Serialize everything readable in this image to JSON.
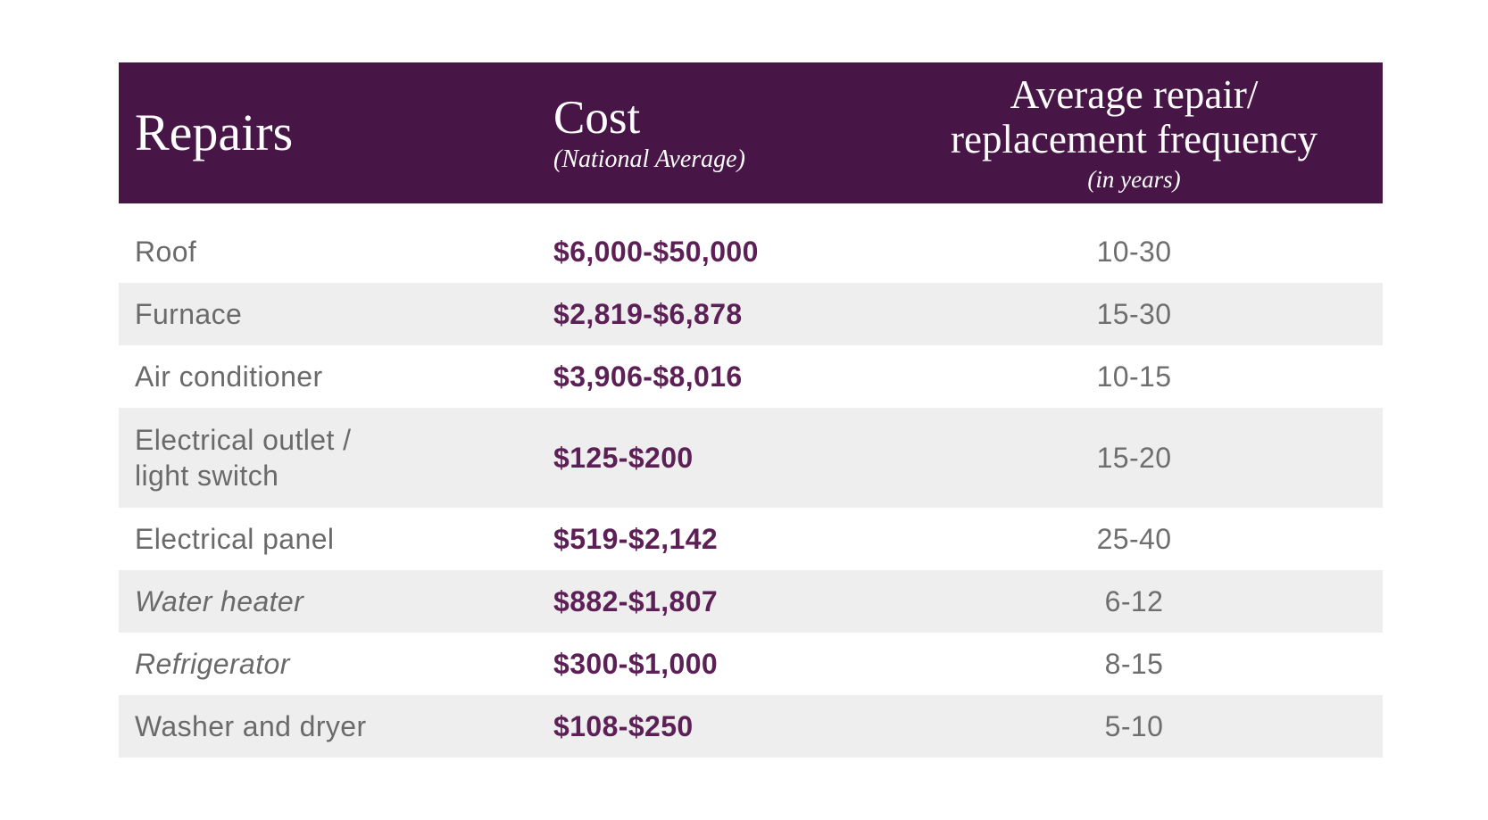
{
  "colors": {
    "header_background": "#481547",
    "header_text": "#ffffff",
    "cost_text": "#5c1f56",
    "repair_label_text": "#6a6a6a",
    "frequency_text": "#6e6e6e",
    "shaded_row_background": "#eeeeee",
    "page_background": "#ffffff"
  },
  "header": {
    "repairs_label": "Repairs",
    "cost_label": "Cost",
    "cost_sublabel": "(National Average)",
    "frequency_line1": "Average repair/",
    "frequency_line2": "replacement frequency",
    "frequency_sublabel": "(in years)"
  },
  "rows": [
    {
      "repair_lines": [
        "Roof"
      ],
      "italic": false,
      "shaded": false,
      "cost": "$6,000-$50,000",
      "frequency": "10-30"
    },
    {
      "repair_lines": [
        "Furnace"
      ],
      "italic": false,
      "shaded": true,
      "cost": "$2,819-$6,878",
      "frequency": "15-30"
    },
    {
      "repair_lines": [
        "Air conditioner"
      ],
      "italic": false,
      "shaded": false,
      "cost": "$3,906-$8,016",
      "frequency": "10-15"
    },
    {
      "repair_lines": [
        "Electrical outlet /",
        "light switch"
      ],
      "italic": false,
      "shaded": true,
      "cost": "$125-$200",
      "frequency": "15-20"
    },
    {
      "repair_lines": [
        "Electrical panel"
      ],
      "italic": false,
      "shaded": false,
      "cost": "$519-$2,142",
      "frequency": "25-40"
    },
    {
      "repair_lines": [
        "Water heater"
      ],
      "italic": true,
      "shaded": true,
      "cost": "$882-$1,807",
      "frequency": "6-12"
    },
    {
      "repair_lines": [
        "Refrigerator"
      ],
      "italic": true,
      "shaded": false,
      "cost": "$300-$1,000",
      "frequency": "8-15"
    },
    {
      "repair_lines": [
        "Washer and dryer"
      ],
      "italic": false,
      "shaded": true,
      "cost": "$108-$250",
      "frequency": "5-10"
    }
  ],
  "chart_data": {
    "type": "table",
    "title": "",
    "columns": [
      "Repairs",
      "Cost (National Average)",
      "Average repair/replacement frequency (in years)"
    ],
    "rows": [
      [
        "Roof",
        "$6,000-$50,000",
        "10-30"
      ],
      [
        "Furnace",
        "$2,819-$6,878",
        "15-30"
      ],
      [
        "Air conditioner",
        "$3,906-$8,016",
        "10-15"
      ],
      [
        "Electrical outlet / light switch",
        "$125-$200",
        "15-20"
      ],
      [
        "Electrical panel",
        "$519-$2,142",
        "25-40"
      ],
      [
        "Water heater",
        "$882-$1,807",
        "6-12"
      ],
      [
        "Refrigerator",
        "$300-$1,000",
        "8-15"
      ],
      [
        "Washer and dryer",
        "$108-$250",
        "5-10"
      ]
    ],
    "layout": {
      "header_style": "dark-purple-band",
      "row_striping": "alternate light gray starting at second row",
      "grid": false
    }
  }
}
